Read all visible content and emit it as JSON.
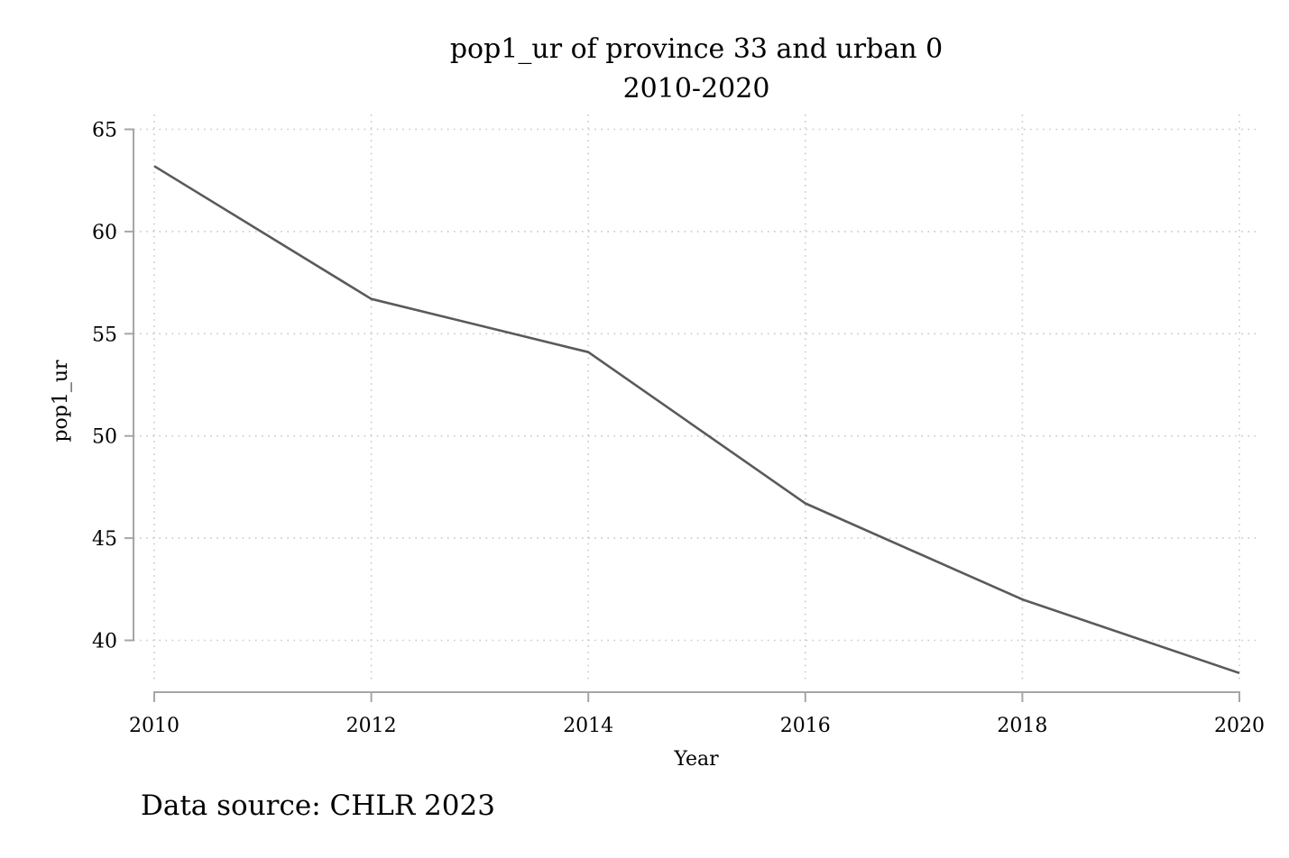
{
  "chart_data": {
    "type": "line",
    "title": "pop1_ur of province 33 and urban 0",
    "subtitle": "2010-2020",
    "xlabel": "Year",
    "ylabel": "pop1_ur",
    "note": "Data source: CHLR 2023",
    "x": [
      2010,
      2012,
      2014,
      2016,
      2018,
      2020
    ],
    "series": [
      {
        "values": [
          63.2,
          56.7,
          54.1,
          46.7,
          42.0,
          38.4
        ]
      }
    ],
    "x_ticks": [
      "2010",
      "2012",
      "2014",
      "2016",
      "2018",
      "2020"
    ],
    "y_ticks": [
      "40",
      "45",
      "50",
      "55",
      "60",
      "65"
    ],
    "xlim": [
      2010,
      2020
    ],
    "ylim": [
      37.5,
      65
    ],
    "grid": true,
    "colors": {
      "line": "#5a5a5a",
      "axis": "#a6a6a6",
      "grid": "#c8c8c8"
    }
  }
}
